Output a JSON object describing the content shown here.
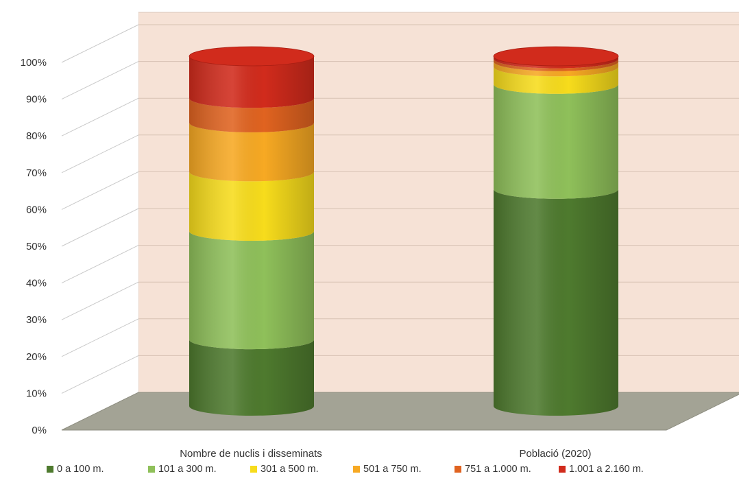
{
  "chart_data": {
    "type": "bar",
    "stacked": true,
    "percent": true,
    "shape": "cylinder-3d",
    "categories": [
      "Nombre de nuclis i disseminats",
      "Població (2020)"
    ],
    "yticks": [
      "0%",
      "10%",
      "20%",
      "30%",
      "40%",
      "50%",
      "60%",
      "70%",
      "80%",
      "90%",
      "100%"
    ],
    "ylim": [
      0,
      100
    ],
    "grid": true,
    "legend_position": "bottom",
    "series": [
      {
        "name": "0 a 100 m.",
        "color": "#4e7a2e",
        "values": [
          19,
          62
        ]
      },
      {
        "name": "101 a 300 m.",
        "color": "#8fc05a",
        "values": [
          31,
          30
        ]
      },
      {
        "name": "301 a 500 m.",
        "color": "#f7dc1c",
        "values": [
          17,
          5
        ]
      },
      {
        "name": "501 a 750 m.",
        "color": "#f7a923",
        "values": [
          14,
          1.5
        ]
      },
      {
        "name": "751 a 1.000 m.",
        "color": "#e06320",
        "values": [
          7,
          0.8
        ]
      },
      {
        "name": "1.001 a 2.160 m.",
        "color": "#d12b1c",
        "values": [
          12,
          0.7
        ]
      }
    ]
  }
}
